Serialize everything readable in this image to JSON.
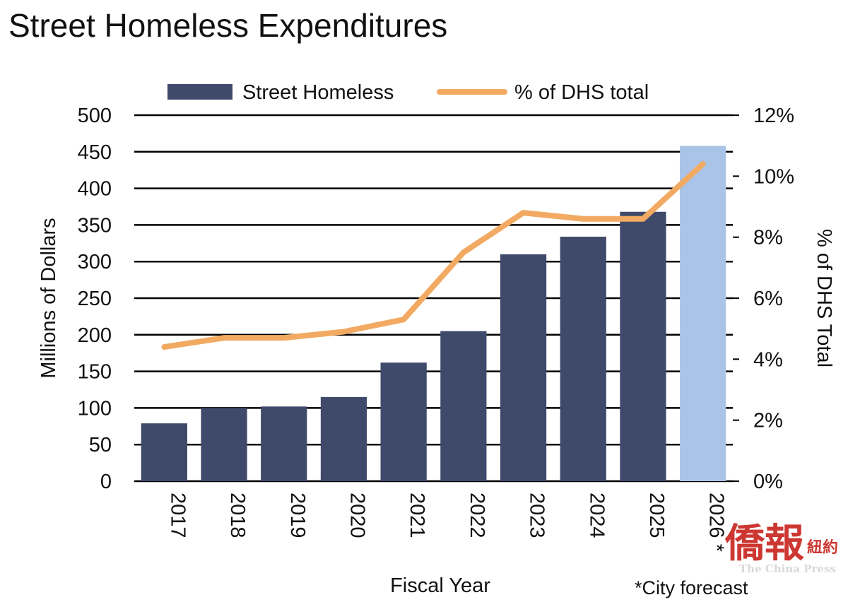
{
  "chart_data": {
    "type": "bar",
    "title": "Street Homeless Expenditures",
    "categories": [
      "2017",
      "2018",
      "2019",
      "2020",
      "2021",
      "2022",
      "2023",
      "2024",
      "2025",
      "2026 *"
    ],
    "series": [
      {
        "name": "Street Homeless",
        "kind": "bar",
        "axis": "left",
        "values": [
          79,
          100,
          102,
          115,
          162,
          205,
          310,
          334,
          368,
          458
        ],
        "colors": [
          "#3f4a6b",
          "#3f4a6b",
          "#3f4a6b",
          "#3f4a6b",
          "#3f4a6b",
          "#3f4a6b",
          "#3f4a6b",
          "#3f4a6b",
          "#3f4a6b",
          "#a9c4e6"
        ]
      },
      {
        "name": "% of DHS total",
        "kind": "line",
        "axis": "right",
        "values": [
          4.4,
          4.7,
          4.7,
          4.9,
          5.3,
          7.5,
          8.8,
          8.6,
          8.6,
          10.4
        ],
        "color": "#f2aa62"
      }
    ],
    "xlabel": "Fiscal Year",
    "ylabel": "Millions of Dollars",
    "y2label": "% of DHS Total",
    "ylim": [
      0,
      500
    ],
    "y2lim": [
      0,
      12
    ],
    "yticks": [
      "0",
      "50",
      "100",
      "150",
      "200",
      "250",
      "300",
      "350",
      "400",
      "450",
      "500"
    ],
    "y2ticks": [
      "0%",
      "2%",
      "4%",
      "6%",
      "8%",
      "10%",
      "12%"
    ],
    "grid": true,
    "legend_position": "top",
    "note": "*City forecast"
  },
  "watermark": {
    "chinese": "僑報",
    "chinese_small": "紐約",
    "english": "The China Press"
  }
}
